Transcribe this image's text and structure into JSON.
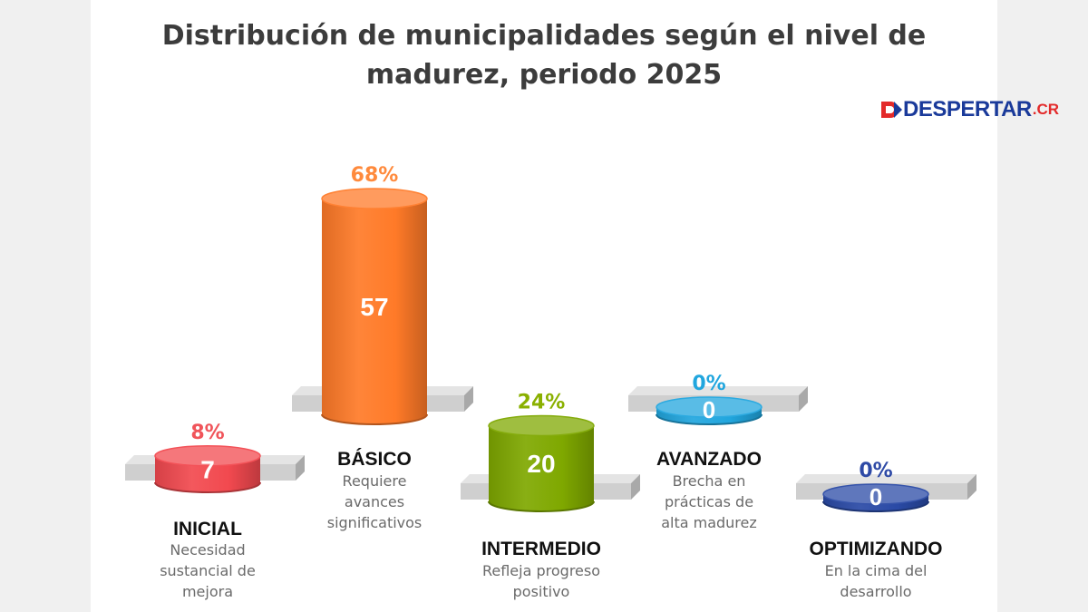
{
  "title": "Distribución de municipalidades según el nivel de madurez, periodo 2025",
  "title_lines": [
    "Distribución de municipalidades según el nivel de",
    "madurez, periodo 2025"
  ],
  "logo": {
    "text": "DESPERTAR",
    "suffix": ".CR",
    "icon": "d-arrow-logo-icon",
    "color": "#1a3a9a",
    "accent": "#e32a2a"
  },
  "chart_data": {
    "type": "bar",
    "style": "3d-cylinder",
    "title": "Distribución de municipalidades según el nivel de madurez, periodo 2025",
    "categories": [
      "INICIAL",
      "BÁSICO",
      "INTERMEDIO",
      "AVANZADO",
      "OPTIMIZANDO"
    ],
    "values": [
      7,
      57,
      20,
      0,
      0
    ],
    "percent_labels": [
      "8%",
      "68%",
      "24%",
      "0%",
      "0%"
    ],
    "descriptions": [
      [
        "Necesidad",
        "sustancial de",
        "mejora"
      ],
      [
        "Requiere",
        "avances",
        "significativos"
      ],
      [
        "Refleja progreso",
        "positivo"
      ],
      [
        "Brecha en",
        "prácticas de",
        "alta madurez"
      ],
      [
        "En la cima del",
        "desarrollo"
      ]
    ],
    "colors": [
      "#f2494f",
      "#ff7a28",
      "#7fa800",
      "#21a6de",
      "#2a4aa6"
    ],
    "percent_colors": [
      "#f0545a",
      "#ff8a3c",
      "#8ab000",
      "#21a6de",
      "#2e4aa6"
    ],
    "platform_color": "#cfcfcf",
    "grid": false,
    "legend": "none"
  }
}
